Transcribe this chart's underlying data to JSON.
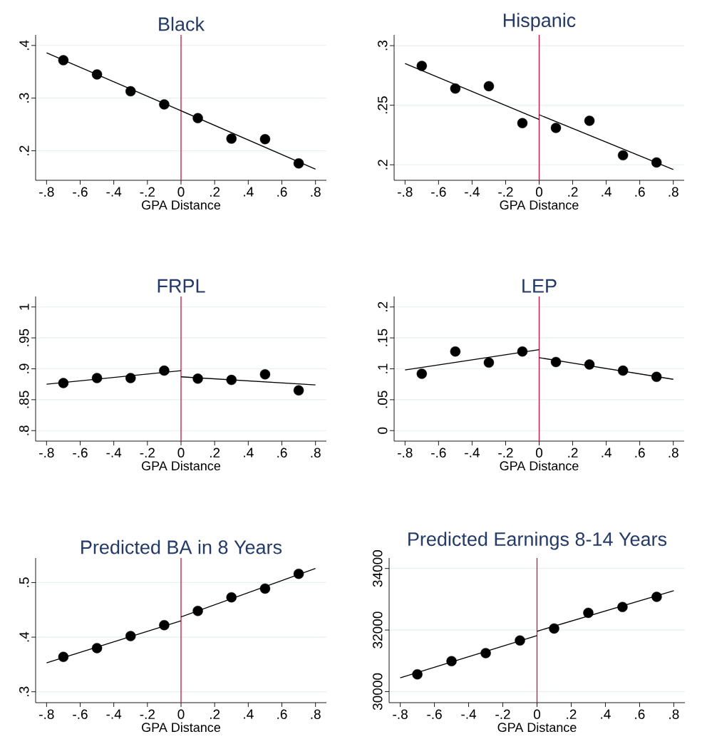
{
  "chart_data": [
    {
      "type": "scatter",
      "title": "Black",
      "xlabel": "GPA Distance",
      "grid": "y",
      "xlim": [
        -0.865,
        0.865
      ],
      "ylim": [
        0.144,
        0.42
      ],
      "xticks": [
        {
          "value": -0.8,
          "label": "-.8"
        },
        {
          "value": -0.6,
          "label": "-.6"
        },
        {
          "value": -0.4,
          "label": "-.4"
        },
        {
          "value": -0.2,
          "label": "-.2"
        },
        {
          "value": 0,
          "label": "0"
        },
        {
          "value": 0.2,
          "label": ".2"
        },
        {
          "value": 0.4,
          "label": ".4"
        },
        {
          "value": 0.6,
          "label": ".6"
        },
        {
          "value": 0.8,
          "label": ".8"
        }
      ],
      "yticks": [
        {
          "value": 0.2,
          "label": ".2"
        },
        {
          "value": 0.3,
          "label": ".3"
        },
        {
          "value": 0.4,
          "label": ".4"
        }
      ],
      "series": [
        {
          "marker": "circle",
          "color": "#000000",
          "x": [
            -0.7,
            -0.5,
            -0.3,
            -0.1,
            0.1,
            0.3,
            0.5,
            0.7
          ],
          "values": [
            0.372,
            0.345,
            0.313,
            0.288,
            0.262,
            0.223,
            0.222,
            0.176
          ]
        },
        {
          "type": "line",
          "marker": "none",
          "color": "#000000",
          "x": [
            -0.8,
            0,
            0.8
          ],
          "values": [
            0.386,
            0.276,
            0.165
          ]
        }
      ],
      "ref_lines": [
        {
          "axis": "x",
          "value": 0,
          "color": "#c8143c"
        }
      ]
    },
    {
      "type": "scatter",
      "title": "Hispanic",
      "xlabel": "GPA Distance",
      "grid": "y",
      "xlim": [
        -0.865,
        0.865
      ],
      "ylim": [
        0.187,
        0.309
      ],
      "xticks": [
        {
          "value": -0.8,
          "label": "-.8"
        },
        {
          "value": -0.6,
          "label": "-.6"
        },
        {
          "value": -0.4,
          "label": "-.4"
        },
        {
          "value": -0.2,
          "label": "-.2"
        },
        {
          "value": 0,
          "label": "0"
        },
        {
          "value": 0.2,
          "label": ".2"
        },
        {
          "value": 0.4,
          "label": ".4"
        },
        {
          "value": 0.6,
          "label": ".6"
        },
        {
          "value": 0.8,
          "label": ".8"
        }
      ],
      "yticks": [
        {
          "value": 0.2,
          "label": ".2"
        },
        {
          "value": 0.25,
          "label": ".25"
        },
        {
          "value": 0.3,
          "label": ".3"
        }
      ],
      "series": [
        {
          "marker": "circle",
          "color": "#000000",
          "x": [
            -0.7,
            -0.5,
            -0.3,
            -0.1,
            0.1,
            0.3,
            0.5,
            0.7
          ],
          "values": [
            0.283,
            0.264,
            0.266,
            0.235,
            0.231,
            0.237,
            0.208,
            0.202
          ]
        },
        {
          "type": "line",
          "marker": "none",
          "color": "#000000",
          "x": [
            -0.8,
            0
          ],
          "values": [
            0.285,
            0.238
          ]
        },
        {
          "type": "line",
          "marker": "none",
          "color": "#000000",
          "x": [
            0,
            0.8
          ],
          "values": [
            0.242,
            0.196
          ]
        }
      ],
      "ref_lines": [
        {
          "axis": "x",
          "value": 0,
          "color": "#c8143c"
        }
      ]
    },
    {
      "type": "scatter",
      "title": "FRPL",
      "xlabel": "GPA Distance",
      "grid": "y",
      "xlim": [
        -0.865,
        0.865
      ],
      "ylim": [
        0.783,
        1.017
      ],
      "xticks": [
        {
          "value": -0.8,
          "label": "-.8"
        },
        {
          "value": -0.6,
          "label": "-.6"
        },
        {
          "value": -0.4,
          "label": "-.4"
        },
        {
          "value": -0.2,
          "label": "-.2"
        },
        {
          "value": 0,
          "label": "0"
        },
        {
          "value": 0.2,
          "label": ".2"
        },
        {
          "value": 0.4,
          "label": ".4"
        },
        {
          "value": 0.6,
          "label": ".6"
        },
        {
          "value": 0.8,
          "label": ".8"
        }
      ],
      "yticks": [
        {
          "value": 0.8,
          "label": ".8"
        },
        {
          "value": 0.85,
          "label": ".85"
        },
        {
          "value": 0.9,
          "label": ".9"
        },
        {
          "value": 0.95,
          "label": ".95"
        },
        1
      ],
      "series": [
        {
          "marker": "circle",
          "color": "#000000",
          "x": [
            -0.7,
            -0.5,
            -0.3,
            -0.1,
            0.1,
            0.3,
            0.5,
            0.7
          ],
          "values": [
            0.877,
            0.885,
            0.885,
            0.897,
            0.884,
            0.882,
            0.891,
            0.865
          ]
        },
        {
          "type": "line",
          "marker": "none",
          "color": "#000000",
          "x": [
            -0.8,
            0
          ],
          "values": [
            0.875,
            0.897
          ]
        },
        {
          "type": "line",
          "marker": "none",
          "color": "#000000",
          "x": [
            0,
            0.8
          ],
          "values": [
            0.887,
            0.874
          ]
        }
      ],
      "ref_lines": [
        {
          "axis": "x",
          "value": 0,
          "color": "#c8143c"
        }
      ]
    },
    {
      "type": "scatter",
      "title": "LEP",
      "xlabel": "GPA Distance",
      "grid": "y",
      "xlim": [
        -0.865,
        0.865
      ],
      "ylim": [
        -0.017,
        0.217
      ],
      "xticks": [
        {
          "value": -0.8,
          "label": "-.8"
        },
        {
          "value": -0.6,
          "label": "-.6"
        },
        {
          "value": -0.4,
          "label": "-.4"
        },
        {
          "value": -0.2,
          "label": "-.2"
        },
        {
          "value": 0,
          "label": "0"
        },
        {
          "value": 0.2,
          "label": ".2"
        },
        {
          "value": 0.4,
          "label": ".4"
        },
        {
          "value": 0.6,
          "label": ".6"
        },
        {
          "value": 0.8,
          "label": ".8"
        }
      ],
      "yticks": [
        0,
        {
          "value": 0.05,
          "label": ".05"
        },
        {
          "value": 0.1,
          "label": ".1"
        },
        {
          "value": 0.15,
          "label": ".15"
        },
        {
          "value": 0.2,
          "label": ".2"
        }
      ],
      "series": [
        {
          "marker": "circle",
          "color": "#000000",
          "x": [
            -0.7,
            -0.5,
            -0.3,
            -0.1,
            0.1,
            0.3,
            0.5,
            0.7
          ],
          "values": [
            0.092,
            0.128,
            0.11,
            0.128,
            0.111,
            0.107,
            0.097,
            0.087
          ]
        },
        {
          "type": "line",
          "marker": "none",
          "color": "#000000",
          "x": [
            -0.8,
            0
          ],
          "values": [
            0.098,
            0.131
          ]
        },
        {
          "type": "line",
          "marker": "none",
          "color": "#000000",
          "x": [
            0,
            0.8
          ],
          "values": [
            0.118,
            0.083
          ]
        }
      ],
      "ref_lines": [
        {
          "axis": "x",
          "value": 0,
          "color": "#c8143c"
        }
      ]
    },
    {
      "type": "scatter",
      "title": "Predicted BA in 8 Years",
      "xlabel": "GPA Distance",
      "grid": "y",
      "xlim": [
        -0.865,
        0.865
      ],
      "ylim": [
        0.28,
        0.545
      ],
      "xticks": [
        {
          "value": -0.8,
          "label": "-.8"
        },
        {
          "value": -0.6,
          "label": "-.6"
        },
        {
          "value": -0.4,
          "label": "-.4"
        },
        {
          "value": -0.2,
          "label": "-.2"
        },
        {
          "value": 0,
          "label": "0"
        },
        {
          "value": 0.2,
          "label": ".2"
        },
        {
          "value": 0.4,
          "label": ".4"
        },
        {
          "value": 0.6,
          "label": ".6"
        },
        {
          "value": 0.8,
          "label": ".8"
        }
      ],
      "yticks": [
        {
          "value": 0.3,
          "label": ".3"
        },
        {
          "value": 0.4,
          "label": ".4"
        },
        {
          "value": 0.5,
          "label": ".5"
        }
      ],
      "series": [
        {
          "marker": "circle",
          "color": "#000000",
          "x": [
            -0.7,
            -0.5,
            -0.3,
            -0.1,
            0.1,
            0.3,
            0.5,
            0.7
          ],
          "values": [
            0.364,
            0.38,
            0.402,
            0.422,
            0.448,
            0.473,
            0.489,
            0.516
          ]
        },
        {
          "type": "line",
          "marker": "none",
          "color": "#000000",
          "x": [
            -0.8,
            0
          ],
          "values": [
            0.353,
            0.43
          ]
        },
        {
          "type": "line",
          "marker": "none",
          "color": "#000000",
          "x": [
            0,
            0.8
          ],
          "values": [
            0.437,
            0.526
          ]
        }
      ],
      "ref_lines": [
        {
          "axis": "x",
          "value": 0,
          "color": "#c8143c"
        }
      ]
    },
    {
      "type": "scatter",
      "title": "Predicted Earnings 8-14 Years",
      "xlabel": "GPA Distance",
      "grid": "y",
      "xlim": [
        -0.865,
        0.865
      ],
      "ylim": [
        29640,
        34340
      ],
      "xticks": [
        {
          "value": -0.8,
          "label": "-.8"
        },
        {
          "value": -0.6,
          "label": "-.6"
        },
        {
          "value": -0.4,
          "label": "-.4"
        },
        {
          "value": -0.2,
          "label": "-.2"
        },
        {
          "value": 0,
          "label": "0"
        },
        {
          "value": 0.2,
          "label": ".2"
        },
        {
          "value": 0.4,
          "label": ".4"
        },
        {
          "value": 0.6,
          "label": ".6"
        },
        {
          "value": 0.8,
          "label": ".8"
        }
      ],
      "yticks": [
        30000,
        32000,
        34000
      ],
      "series": [
        {
          "marker": "circle",
          "color": "#000000",
          "x": [
            -0.7,
            -0.5,
            -0.3,
            -0.1,
            0.1,
            0.3,
            0.5,
            0.7
          ],
          "values": [
            30560,
            30990,
            31250,
            31660,
            32050,
            32560,
            32750,
            33080
          ]
        },
        {
          "type": "line",
          "marker": "none",
          "color": "#000000",
          "x": [
            -0.8,
            0
          ],
          "values": [
            30450,
            31820
          ]
        },
        {
          "type": "line",
          "marker": "none",
          "color": "#000000",
          "x": [
            0,
            0.8
          ],
          "values": [
            31960,
            33280
          ]
        }
      ],
      "ref_lines": [
        {
          "axis": "x",
          "value": 0,
          "color": "#c8143c"
        }
      ]
    }
  ]
}
